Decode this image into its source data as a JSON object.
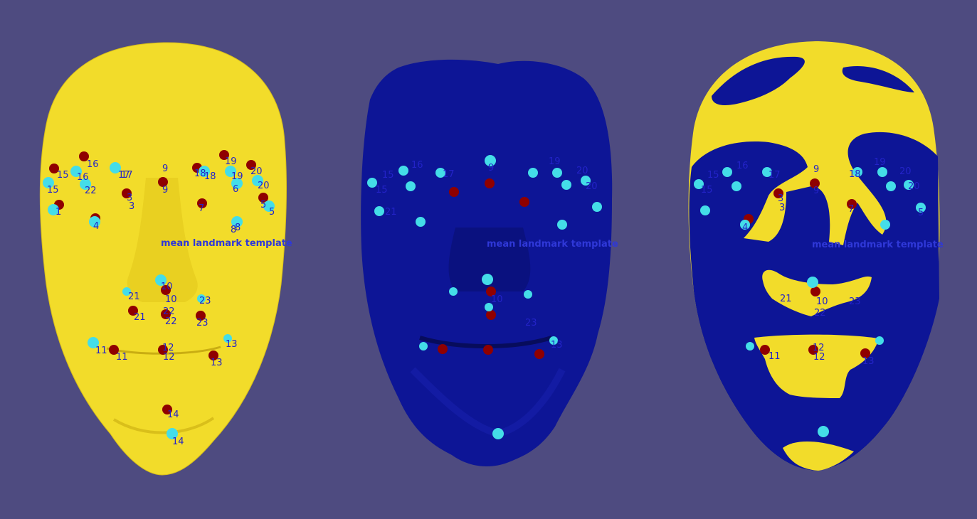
{
  "scene": {
    "background_color": "#4e4b80",
    "template_color": "#f2dc2a",
    "scan_color": "#0d1596",
    "template_landmark_color": "#8f0000",
    "scan_landmark_color": "#44dde8"
  },
  "panels": [
    {
      "id": "template-face",
      "caption": "mean landmark template",
      "labels": {
        "t1": "15",
        "t2": "16",
        "t3": "17",
        "t4": "9",
        "t5": "18",
        "t6": "19",
        "t7": "20",
        "t8": "15",
        "t9": "16",
        "t10": "22",
        "t11": "17",
        "t12": "18",
        "t13": "19",
        "t14": "6",
        "t15": "20",
        "t16": "9",
        "t17": "3",
        "t18": "3",
        "t19": "1",
        "t20": "4",
        "t21": "7",
        "t22": "8",
        "t23": "5",
        "t24": "5",
        "t25": "8",
        "t26": "10",
        "t27": "21",
        "t28": "10",
        "t29": "23",
        "t30": "21",
        "t31": "22",
        "t32": "22",
        "t33": "23",
        "t34": "11",
        "t35": "12",
        "t36": "13",
        "t37": "11",
        "t38": "12",
        "t39": "13",
        "t40": "14",
        "t41": "14"
      }
    },
    {
      "id": "scan-face",
      "caption": "mean landmark template",
      "labels": {
        "s1": "15",
        "s2": "16",
        "s3": "17",
        "s4": "9",
        "s5": "19",
        "s6": "20",
        "s7": "15",
        "s8": "21",
        "s9": "20",
        "s10": "10",
        "s11": "23",
        "s12": "13"
      }
    },
    {
      "id": "overlay-face",
      "caption": "mean landmark template",
      "labels": {
        "o1": "15",
        "o2": "16",
        "o3": "17",
        "o4": "9",
        "o5": "18",
        "o6": "19",
        "o7": "20",
        "o8": "15",
        "o9": "20",
        "o10": "9",
        "o11": "3",
        "o12": "3",
        "o13": "7",
        "o14": "4",
        "o15": "5",
        "o16": "21",
        "o17": "10",
        "o18": "23",
        "o19": "22",
        "o20": "11",
        "o21": "12",
        "o22": "12",
        "o23": "13"
      }
    }
  ]
}
